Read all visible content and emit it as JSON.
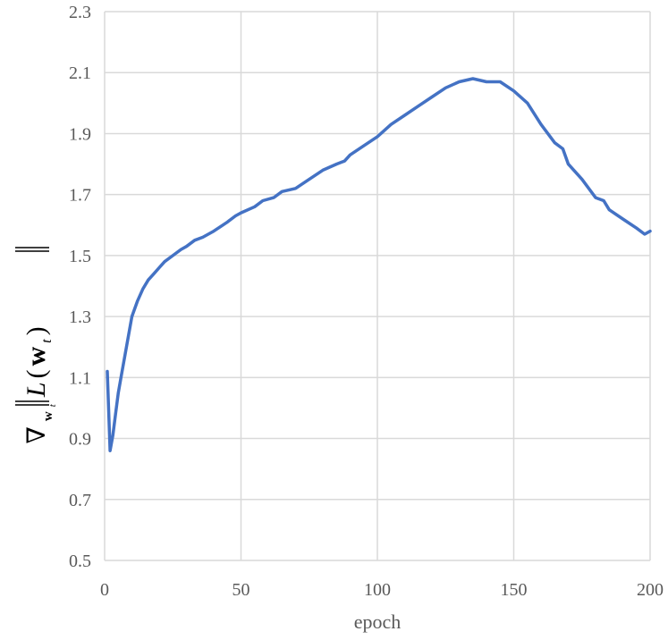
{
  "chart_data": {
    "type": "line",
    "title": "",
    "xlabel": "epoch",
    "ylabel": {
      "nabla": "∇",
      "subscript": "w",
      "subscript_index": "t",
      "func": "L",
      "arg": "w",
      "arg_index": "t"
    },
    "xlim": [
      0,
      200
    ],
    "ylim": [
      0.5,
      2.3
    ],
    "x_ticks": [
      "0",
      "50",
      "100",
      "150",
      "200"
    ],
    "y_ticks": [
      "0.5",
      "0.7",
      "0.9",
      "1.1",
      "1.3",
      "1.5",
      "1.7",
      "1.9",
      "2.1",
      "2.3"
    ],
    "grid": true,
    "legend": "none",
    "series": [
      {
        "color": "#4472c4",
        "x": [
          1,
          2,
          3,
          4,
          5,
          6,
          8,
          10,
          12,
          14,
          16,
          18,
          20,
          22,
          25,
          28,
          30,
          33,
          36,
          40,
          45,
          48,
          50,
          55,
          58,
          62,
          65,
          70,
          75,
          80,
          85,
          88,
          90,
          95,
          100,
          105,
          110,
          115,
          120,
          125,
          130,
          135,
          140,
          145,
          150,
          155,
          160,
          165,
          168,
          170,
          175,
          180,
          183,
          185,
          190,
          195,
          198,
          200
        ],
        "y": [
          1.12,
          0.86,
          0.91,
          0.98,
          1.05,
          1.1,
          1.2,
          1.3,
          1.35,
          1.39,
          1.42,
          1.44,
          1.46,
          1.48,
          1.5,
          1.52,
          1.53,
          1.55,
          1.56,
          1.58,
          1.61,
          1.63,
          1.64,
          1.66,
          1.68,
          1.69,
          1.71,
          1.72,
          1.75,
          1.78,
          1.8,
          1.81,
          1.83,
          1.86,
          1.89,
          1.93,
          1.96,
          1.99,
          2.02,
          2.05,
          2.07,
          2.08,
          2.07,
          2.07,
          2.04,
          2.0,
          1.93,
          1.87,
          1.85,
          1.8,
          1.75,
          1.69,
          1.68,
          1.65,
          1.62,
          1.59,
          1.57,
          1.58
        ]
      }
    ]
  }
}
